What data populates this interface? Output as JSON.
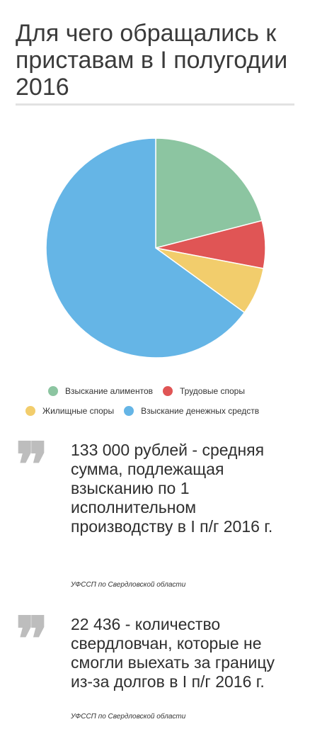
{
  "title": "Для чего обращались к приставам в I полугодии 2016",
  "chart_data": {
    "type": "pie",
    "categories": [
      "Взыскание алиментов",
      "Трудовые споры",
      "Жилищные споры",
      "Взыскание денежных средств"
    ],
    "values": [
      21,
      7,
      7,
      65
    ],
    "colors": [
      "#8cc5a1",
      "#e05555",
      "#f2cd6c",
      "#65b5e6"
    ]
  },
  "legend": {
    "alimony": "Взыскание алиментов",
    "labor": "Трудовые споры",
    "housing": "Жилищные споры",
    "money": "Взыскание денежных средств"
  },
  "quotes": [
    {
      "mark": "❞",
      "text": "133 000 рублей - средняя сумма, подлежащая взысканию по 1 исполнительном производству  в I п/г 2016 г.",
      "source": "УФССП по Свердловской области"
    },
    {
      "mark": "❞",
      "text": "22 436 - количество свердловчан, которые не смогли выехать за границу из-за долгов в I п/г 2016 г.",
      "source": "УФССП по Свердловской области"
    }
  ]
}
